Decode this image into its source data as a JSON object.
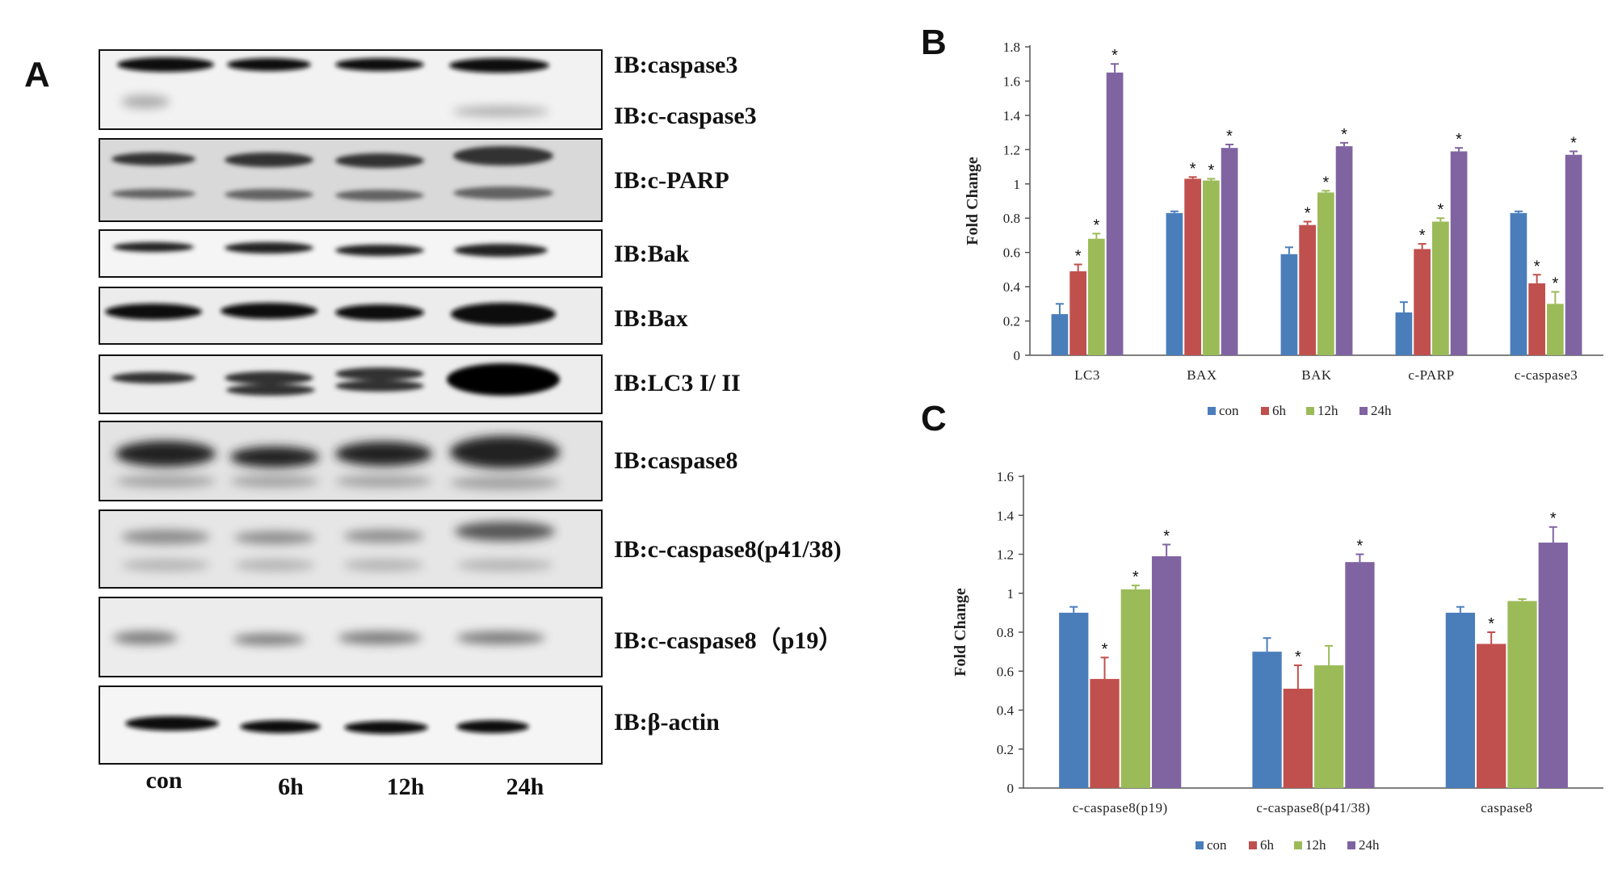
{
  "panels": {
    "A": "A",
    "B": "B",
    "C": "C"
  },
  "blot": {
    "lanes": [
      "con",
      "6h",
      "12h",
      "24h"
    ],
    "labels": [
      "IB:caspase3",
      "IB:c-caspase3",
      "IB:c-PARP",
      "IB:Bak",
      "IB:Bax",
      "IB:LC3 I/ II",
      "IB:caspase8",
      "IB:c-caspase8(p41/38)",
      "IB:c-caspase8（p19）",
      "IB:β-actin"
    ]
  },
  "chart_data": [
    {
      "type": "bar",
      "panel": "B",
      "title": "",
      "xlabel": "",
      "ylabel": "Fold Change",
      "ylim": [
        0,
        1.8
      ],
      "yticks": [
        "0",
        "0.2",
        "0.4",
        "0.6",
        "0.8",
        "1",
        "1.2",
        "1.4",
        "1.6",
        "1.8"
      ],
      "categories": [
        "LC3",
        "BAX",
        "BAK",
        "c-PARP",
        "c-caspase3"
      ],
      "legend_position": "bottom",
      "series": [
        {
          "name": "con",
          "color": "#4a7ebb",
          "values": [
            0.24,
            0.83,
            0.59,
            0.25,
            0.83
          ],
          "errors": [
            0.06,
            0.01,
            0.04,
            0.06,
            0.01
          ],
          "sig": [
            false,
            false,
            false,
            false,
            false
          ]
        },
        {
          "name": "6h",
          "color": "#c0504d",
          "values": [
            0.49,
            1.03,
            0.76,
            0.62,
            0.42
          ],
          "errors": [
            0.04,
            0.01,
            0.02,
            0.03,
            0.05
          ],
          "sig": [
            true,
            true,
            true,
            true,
            true
          ]
        },
        {
          "name": "12h",
          "color": "#9bbb59",
          "values": [
            0.68,
            1.02,
            0.95,
            0.78,
            0.3
          ],
          "errors": [
            0.03,
            0.01,
            0.01,
            0.02,
            0.07
          ],
          "sig": [
            true,
            true,
            true,
            true,
            true
          ]
        },
        {
          "name": "24h",
          "color": "#8064a2",
          "values": [
            1.65,
            1.21,
            1.22,
            1.19,
            1.17
          ],
          "errors": [
            0.05,
            0.02,
            0.02,
            0.02,
            0.02
          ],
          "sig": [
            true,
            true,
            true,
            true,
            true
          ]
        }
      ]
    },
    {
      "type": "bar",
      "panel": "C",
      "title": "",
      "xlabel": "",
      "ylabel": "Fold Change",
      "ylim": [
        0,
        1.6
      ],
      "yticks": [
        "0",
        "0.2",
        "0.4",
        "0.6",
        "0.8",
        "1",
        "1.2",
        "1.4",
        "1.6"
      ],
      "categories": [
        "c-caspase8(p19)",
        "c-caspase8(p41/38)",
        "caspase8"
      ],
      "legend_position": "bottom",
      "series": [
        {
          "name": "con",
          "color": "#4a7ebb",
          "values": [
            0.9,
            0.7,
            0.9
          ],
          "errors": [
            0.03,
            0.07,
            0.03
          ],
          "sig": [
            false,
            false,
            false
          ]
        },
        {
          "name": "6h",
          "color": "#c0504d",
          "values": [
            0.56,
            0.51,
            0.74
          ],
          "errors": [
            0.11,
            0.12,
            0.06
          ],
          "sig": [
            true,
            true,
            true
          ]
        },
        {
          "name": "12h",
          "color": "#9bbb59",
          "values": [
            1.02,
            0.63,
            0.96
          ],
          "errors": [
            0.02,
            0.1,
            0.01
          ],
          "sig": [
            true,
            false,
            false
          ]
        },
        {
          "name": "24h",
          "color": "#8064a2",
          "values": [
            1.19,
            1.16,
            1.26
          ],
          "errors": [
            0.06,
            0.04,
            0.08
          ],
          "sig": [
            true,
            true,
            true
          ]
        }
      ]
    }
  ]
}
